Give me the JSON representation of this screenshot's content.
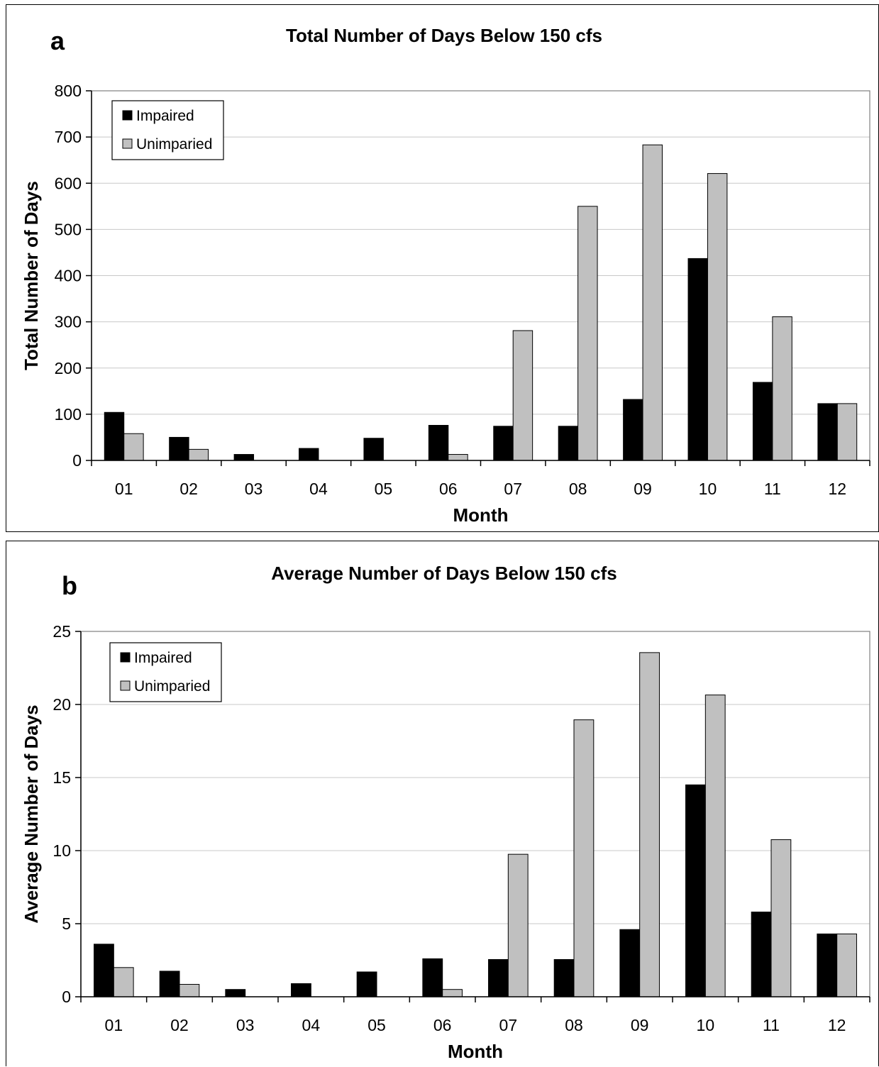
{
  "chart_data": [
    {
      "type": "bar",
      "panel_label": "a",
      "title": "Total Number of Days Below 150 cfs",
      "xlabel": "Month",
      "ylabel": "Total Number of Days",
      "categories": [
        "01",
        "02",
        "03",
        "04",
        "05",
        "06",
        "07",
        "08",
        "09",
        "10",
        "11",
        "12"
      ],
      "ylim": [
        0,
        800
      ],
      "yticks": [
        0,
        100,
        200,
        300,
        400,
        500,
        600,
        700,
        800
      ],
      "grid": true,
      "legend_position": "top-left",
      "series": [
        {
          "name": "Impaired",
          "color": "#000000",
          "values": [
            104,
            50,
            13,
            26,
            48,
            76,
            74,
            74,
            132,
            437,
            169,
            123
          ]
        },
        {
          "name": "Unimparied",
          "color": "#c0c0c0",
          "values": [
            58,
            24,
            0,
            0,
            0,
            13,
            281,
            550,
            683,
            621,
            311,
            123
          ]
        }
      ]
    },
    {
      "type": "bar",
      "panel_label": "b",
      "title": "Average Number of Days Below 150 cfs",
      "xlabel": "Month",
      "ylabel": "Average Number of Days",
      "categories": [
        "01",
        "02",
        "03",
        "04",
        "05",
        "06",
        "07",
        "08",
        "09",
        "10",
        "11",
        "12"
      ],
      "ylim": [
        0,
        25
      ],
      "yticks": [
        0,
        5,
        10,
        15,
        20,
        25
      ],
      "grid": true,
      "legend_position": "top-left",
      "series": [
        {
          "name": "Impaired",
          "color": "#000000",
          "values": [
            3.6,
            1.75,
            0.5,
            0.9,
            1.7,
            2.6,
            2.55,
            2.55,
            4.6,
            14.5,
            5.8,
            4.3
          ]
        },
        {
          "name": "Unimparied",
          "color": "#c0c0c0",
          "values": [
            2.0,
            0.85,
            0,
            0,
            0,
            0.5,
            9.75,
            18.95,
            23.55,
            20.65,
            10.75,
            4.3
          ]
        }
      ]
    }
  ]
}
